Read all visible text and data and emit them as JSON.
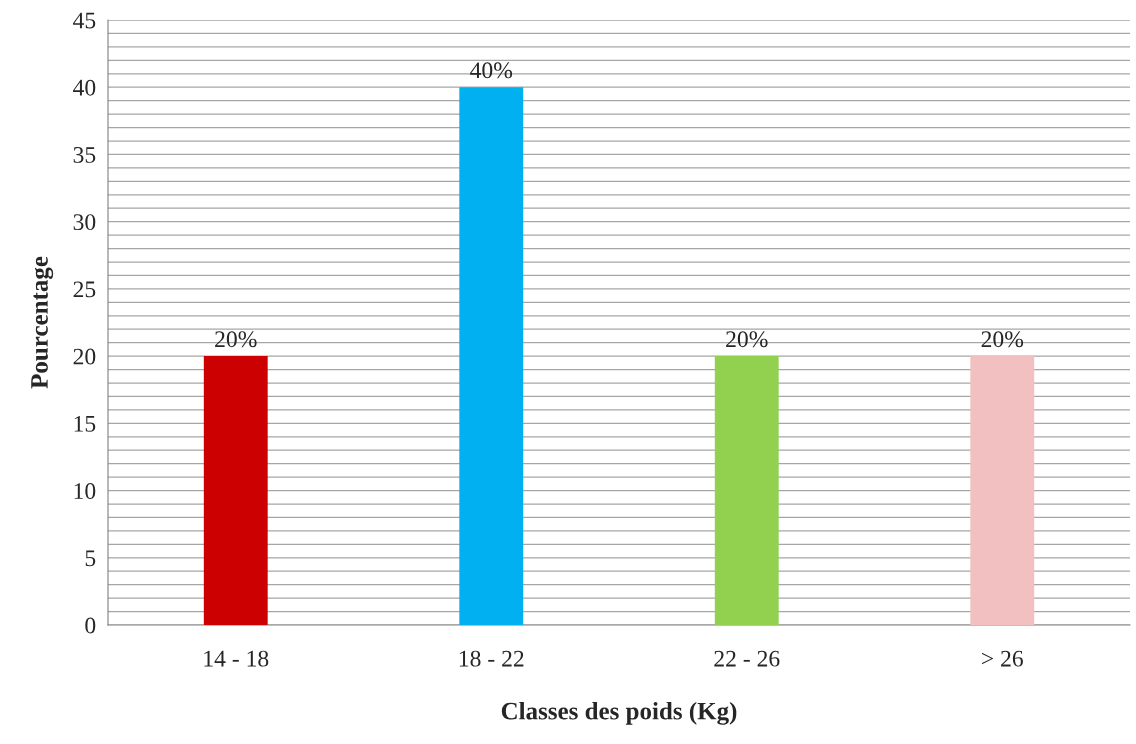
{
  "chart_data": {
    "type": "bar",
    "xlabel": "Classes des poids (Kg)",
    "ylabel": "Pourcentage",
    "categories": [
      "14 - 18",
      "18 - 22",
      "22 - 26",
      "> 26"
    ],
    "values": [
      20,
      40,
      20,
      20
    ],
    "colors": [
      "#cc0000",
      "#00b0f0",
      "#92d050",
      "#f2c0c0"
    ],
    "value_labels": [
      "20%",
      "40%",
      "20%",
      "20%"
    ],
    "ylim": [
      0,
      45
    ],
    "yticks": [
      0,
      5,
      10,
      15,
      20,
      25,
      30,
      35,
      40,
      45
    ],
    "grid": "y",
    "legend": false
  }
}
